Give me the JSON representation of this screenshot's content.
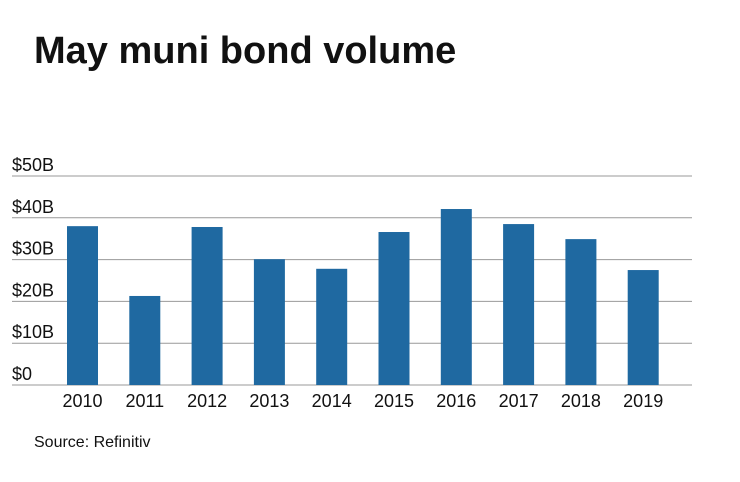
{
  "chart_data": {
    "type": "bar",
    "title": "May muni bond volume",
    "source": "Source: Refinitiv",
    "categories": [
      "2010",
      "2011",
      "2012",
      "2013",
      "2014",
      "2015",
      "2016",
      "2017",
      "2018",
      "2019"
    ],
    "values": [
      38.0,
      21.3,
      37.8,
      30.1,
      27.8,
      36.6,
      42.1,
      38.5,
      34.9,
      27.5
    ],
    "color": "#1f69a1",
    "ylim": [
      0,
      50
    ],
    "yticks": [
      {
        "value": 0,
        "label": "$0"
      },
      {
        "value": 10,
        "label": "$10B"
      },
      {
        "value": 20,
        "label": "$20B"
      },
      {
        "value": 30,
        "label": "$30B"
      },
      {
        "value": 40,
        "label": "$40B"
      },
      {
        "value": 50,
        "label": "$50B"
      }
    ],
    "grid": true
  }
}
